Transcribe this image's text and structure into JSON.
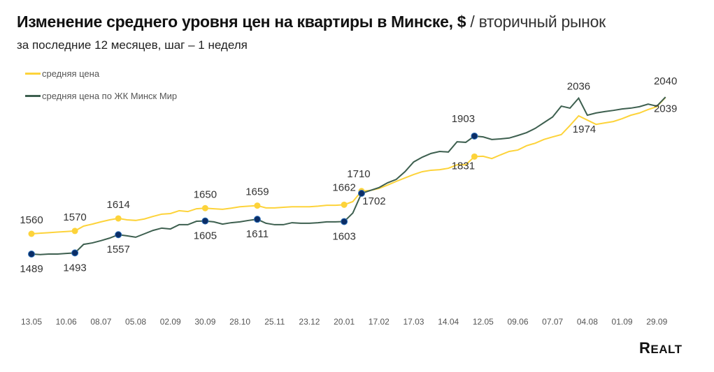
{
  "title": {
    "main": "Изменение среднего уровня цен на квартиры в Минске, $",
    "separator": "/",
    "market": "вторичный рынок"
  },
  "subtitle": "за последние 12 месяцев, шаг – 1 неделя",
  "logo": "REALT",
  "chart_data": {
    "type": "line",
    "xlabel": "",
    "ylabel": "",
    "x_tick_labels": [
      "13.05",
      "10.06",
      "08.07",
      "05.08",
      "02.09",
      "30.09",
      "28.10",
      "25.11",
      "23.12",
      "20.01",
      "17.02",
      "17.03",
      "14.04",
      "12.05",
      "09.06",
      "07.07",
      "04.08",
      "01.09",
      "29.09"
    ],
    "x_tick_every_weeks": 4,
    "grid": false,
    "legend": "top-left",
    "series": [
      {
        "name": "средняя цена",
        "color": "#fdd33a",
        "values": [
          1560,
          1562,
          1564,
          1566,
          1568,
          1570,
          1587,
          1594,
          1602,
          1609,
          1614,
          1609,
          1607,
          1612,
          1621,
          1629,
          1631,
          1641,
          1638,
          1648,
          1650,
          1648,
          1646,
          1650,
          1655,
          1657,
          1659,
          1651,
          1651,
          1653,
          1655,
          1655,
          1655,
          1657,
          1660,
          1660,
          1662,
          1673,
          1710,
          1712,
          1719,
          1731,
          1744,
          1756,
          1768,
          1778,
          1783,
          1785,
          1790,
          1802,
          1802,
          1831,
          1832,
          1824,
          1837,
          1849,
          1854,
          1869,
          1878,
          1891,
          1900,
          1908,
          1940,
          1974,
          1959,
          1944,
          1949,
          1954,
          1964,
          1976,
          1984,
          1996,
          2006,
          2039
        ],
        "markers": [
          0,
          5,
          10,
          20,
          26,
          36,
          38,
          51
        ],
        "labels": [
          {
            "i": 0,
            "text": "1560"
          },
          {
            "i": 5,
            "text": "1570"
          },
          {
            "i": 10,
            "text": "1614"
          },
          {
            "i": 20,
            "text": "1650"
          },
          {
            "i": 26,
            "text": "1659"
          },
          {
            "i": 36,
            "text": "1662"
          },
          {
            "i": 38,
            "text": "1710"
          },
          {
            "i": 51,
            "text": "1831"
          },
          {
            "i": 63,
            "text": "1974"
          },
          {
            "i": 73,
            "text": "2039"
          }
        ]
      },
      {
        "name": "средняя цена по ЖК Минск Мир",
        "color": "#3d5f4f",
        "marker_color": "#0b2d66",
        "values": [
          1489,
          1487,
          1489,
          1489,
          1491,
          1493,
          1523,
          1528,
          1536,
          1545,
          1557,
          1553,
          1548,
          1560,
          1572,
          1580,
          1577,
          1592,
          1592,
          1604,
          1605,
          1602,
          1594,
          1599,
          1602,
          1607,
          1611,
          1597,
          1592,
          1592,
          1599,
          1597,
          1597,
          1599,
          1602,
          1602,
          1603,
          1633,
          1702,
          1712,
          1722,
          1739,
          1751,
          1778,
          1812,
          1829,
          1842,
          1849,
          1847,
          1883,
          1881,
          1903,
          1900,
          1891,
          1893,
          1896,
          1905,
          1915,
          1930,
          1950,
          1970,
          2008,
          2001,
          2036,
          1976,
          1984,
          1989,
          1993,
          1998,
          2001,
          2006,
          2015,
          2008,
          2040
        ],
        "markers": [
          0,
          5,
          10,
          20,
          26,
          36,
          38,
          51
        ],
        "labels": [
          {
            "i": 0,
            "text": "1489"
          },
          {
            "i": 5,
            "text": "1493"
          },
          {
            "i": 10,
            "text": "1557"
          },
          {
            "i": 20,
            "text": "1605"
          },
          {
            "i": 26,
            "text": "1611"
          },
          {
            "i": 36,
            "text": "1603"
          },
          {
            "i": 38,
            "text": "1702"
          },
          {
            "i": 51,
            "text": "1903"
          },
          {
            "i": 63,
            "text": "2036"
          },
          {
            "i": 73,
            "text": "2040"
          }
        ]
      }
    ]
  }
}
